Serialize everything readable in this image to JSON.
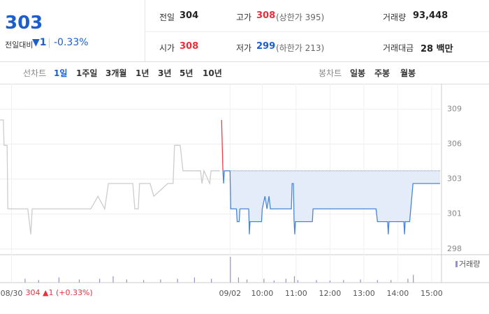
{
  "header": {
    "price": "303",
    "change_label": "전일대비",
    "change": "▼1",
    "change_rate": "-0.33%",
    "stats": [
      {
        "label": "전일",
        "value": "304"
      },
      {
        "label": "고가",
        "value": "308",
        "note": "(상한가 395)"
      },
      {
        "label": "거래량",
        "value": "93,448"
      },
      {
        "label": "시가",
        "value": "308"
      },
      {
        "label": "저가",
        "value": "299",
        "note": "(하한가 213)"
      },
      {
        "label": "거래대금",
        "value": "28 백만"
      }
    ]
  },
  "tabs": {
    "line_label": "선차트",
    "line_periods": [
      "1일",
      "1주일",
      "3개월",
      "1년",
      "3년",
      "5년",
      "10년"
    ],
    "candle_label": "봉차트",
    "candle_periods": [
      "일봉",
      "주봉",
      "월봉"
    ]
  },
  "footer": {
    "close": "304",
    "change": "▲1",
    "rate": "(+0.33%)"
  },
  "chart_data": {
    "type": "line",
    "xlim": [
      2.26,
      15.25
    ],
    "xticks": [
      {
        "value": 2.6,
        "label": "08/30"
      },
      {
        "value": 9.05,
        "label": "09/02"
      },
      {
        "value": 10,
        "label": "10:00"
      },
      {
        "value": 11,
        "label": "11:00"
      },
      {
        "value": 12,
        "label": "12:00"
      },
      {
        "value": 13,
        "label": "13:00"
      },
      {
        "value": 14,
        "label": "14:00"
      },
      {
        "value": 15,
        "label": "15:00"
      }
    ],
    "ylim": [
      297.4,
      310.3
    ],
    "yticks": [
      {
        "value": 297.85,
        "label": "298"
      },
      {
        "value": 300.6,
        "label": "301"
      },
      {
        "value": 303.35,
        "label": "303"
      },
      {
        "value": 306.1,
        "label": "306"
      },
      {
        "value": 308.85,
        "label": "309"
      }
    ],
    "prev_close": 304,
    "series": [
      {
        "color": "#cccccc",
        "x": [
          2.26,
          2.36,
          2.38,
          2.47,
          2.49,
          3.08,
          3.17,
          3.21,
          4.32,
          4.94,
          5.15,
          5.35,
          5.46,
          6.18,
          6.24,
          6.34,
          6.38,
          6.69,
          6.8,
          7.21,
          7.37,
          7.41,
          7.58,
          7.66,
          8.18,
          8.22,
          8.28,
          8.45,
          8.49,
          8.75
        ],
        "values": [
          308,
          308,
          306,
          306,
          301,
          301,
          299,
          301,
          301,
          301,
          302,
          301,
          303,
          303,
          301,
          301,
          303,
          303,
          302,
          303,
          303,
          306,
          306,
          304,
          304,
          303,
          304,
          303,
          304,
          304
        ]
      },
      {
        "color": "#e8424b",
        "x": [
          8.8,
          8.84
        ],
        "values": [
          308,
          304
        ]
      },
      {
        "color": "#4a86d8",
        "fill": "#e3ecf8",
        "x": [
          8.84,
          8.86,
          8.88,
          9.05,
          9.07,
          9.24,
          9.26,
          9.32,
          9.34,
          9.6,
          9.62,
          9.64,
          9.98,
          10.0,
          10.08,
          10.14,
          10.2,
          10.24,
          10.86,
          10.88,
          10.92,
          10.94,
          10.96,
          10.98,
          11.48,
          11.5,
          13.36,
          13.4,
          13.7,
          13.72,
          13.74,
          14.18,
          14.2,
          14.22,
          14.35,
          14.45,
          15.25
        ],
        "values": [
          304,
          303,
          304,
          304,
          301,
          301,
          300,
          300,
          301,
          301,
          299,
          300,
          300,
          301,
          302,
          301,
          302,
          301,
          301,
          303,
          303,
          300,
          299,
          300,
          300,
          301,
          301,
          300,
          300,
          299,
          300,
          300,
          299,
          300,
          300,
          303,
          303
        ]
      }
    ],
    "volume": {
      "name": "거래량",
      "color": "#9a90c8",
      "ylim": [
        0,
        100
      ],
      "x": [
        3.0,
        3.4,
        4.0,
        4.6,
        5.2,
        5.6,
        6.0,
        6.5,
        7.0,
        7.5,
        8.0,
        8.5,
        9.06,
        9.3,
        9.55,
        10.05,
        10.35,
        10.7,
        10.95,
        11.05,
        11.6,
        12.0,
        12.4,
        12.9,
        13.4,
        13.8,
        14.3,
        14.46
      ],
      "values": [
        15,
        10,
        20,
        12,
        15,
        25,
        12,
        10,
        12,
        15,
        20,
        15,
        100,
        20,
        12,
        15,
        8,
        15,
        25,
        10,
        10,
        8,
        10,
        12,
        10,
        10,
        15,
        30
      ]
    }
  }
}
